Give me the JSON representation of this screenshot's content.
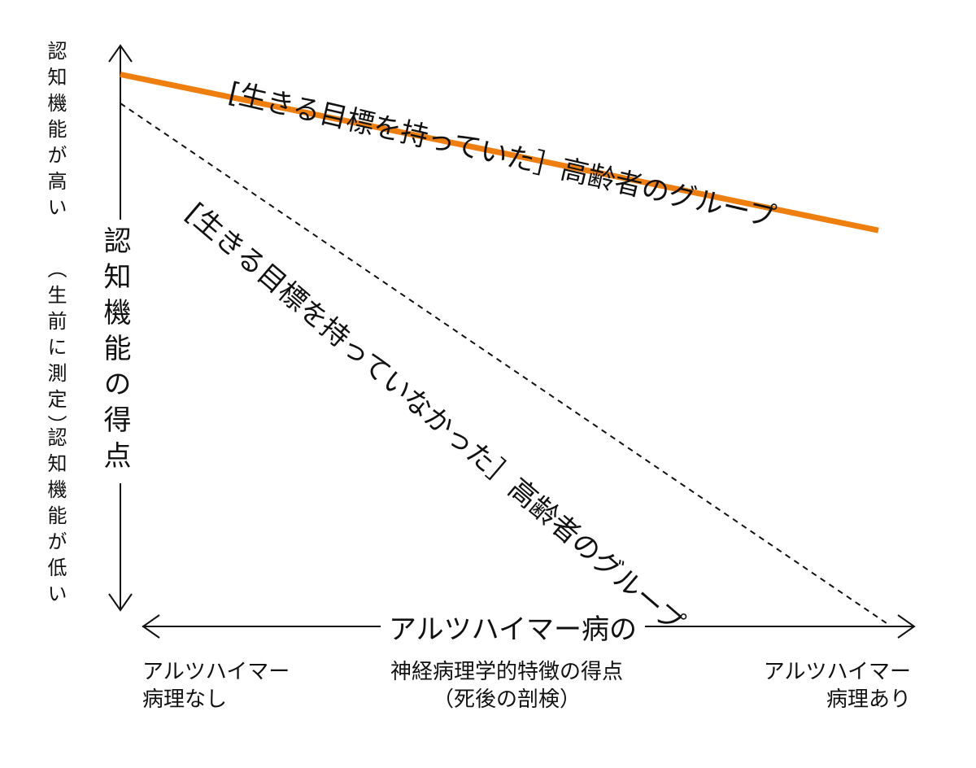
{
  "y_axis": {
    "top_label": "認知機能が高い",
    "mid_label": "（生前に測定）",
    "bottom_label": "認知機能が低い",
    "title": "認知機能の得点"
  },
  "x_axis": {
    "title": "アルツハイマー病の",
    "subtitle_line1": "神経病理学的特徴の得点",
    "subtitle_line2": "（死後の剖検）",
    "left_line1": "アルツハイマー",
    "left_line2": "病理なし",
    "right_line1": "アルツハイマー",
    "right_line2": "病理あり"
  },
  "series": {
    "with_purpose": {
      "label": "[生きる目標を持っていた］高齢者のグループ",
      "color": "#ee7f0f",
      "style": "solid",
      "start_level": 0.95,
      "end_level": 0.68
    },
    "without_purpose": {
      "label": "[生きる目標を持っていなかった］高齢者のグループ",
      "color": "#111111",
      "style": "dashed",
      "start_level": 0.9,
      "end_level": 0.0
    }
  },
  "colors": {
    "axis": "#111111",
    "accent": "#ee7f0f"
  }
}
